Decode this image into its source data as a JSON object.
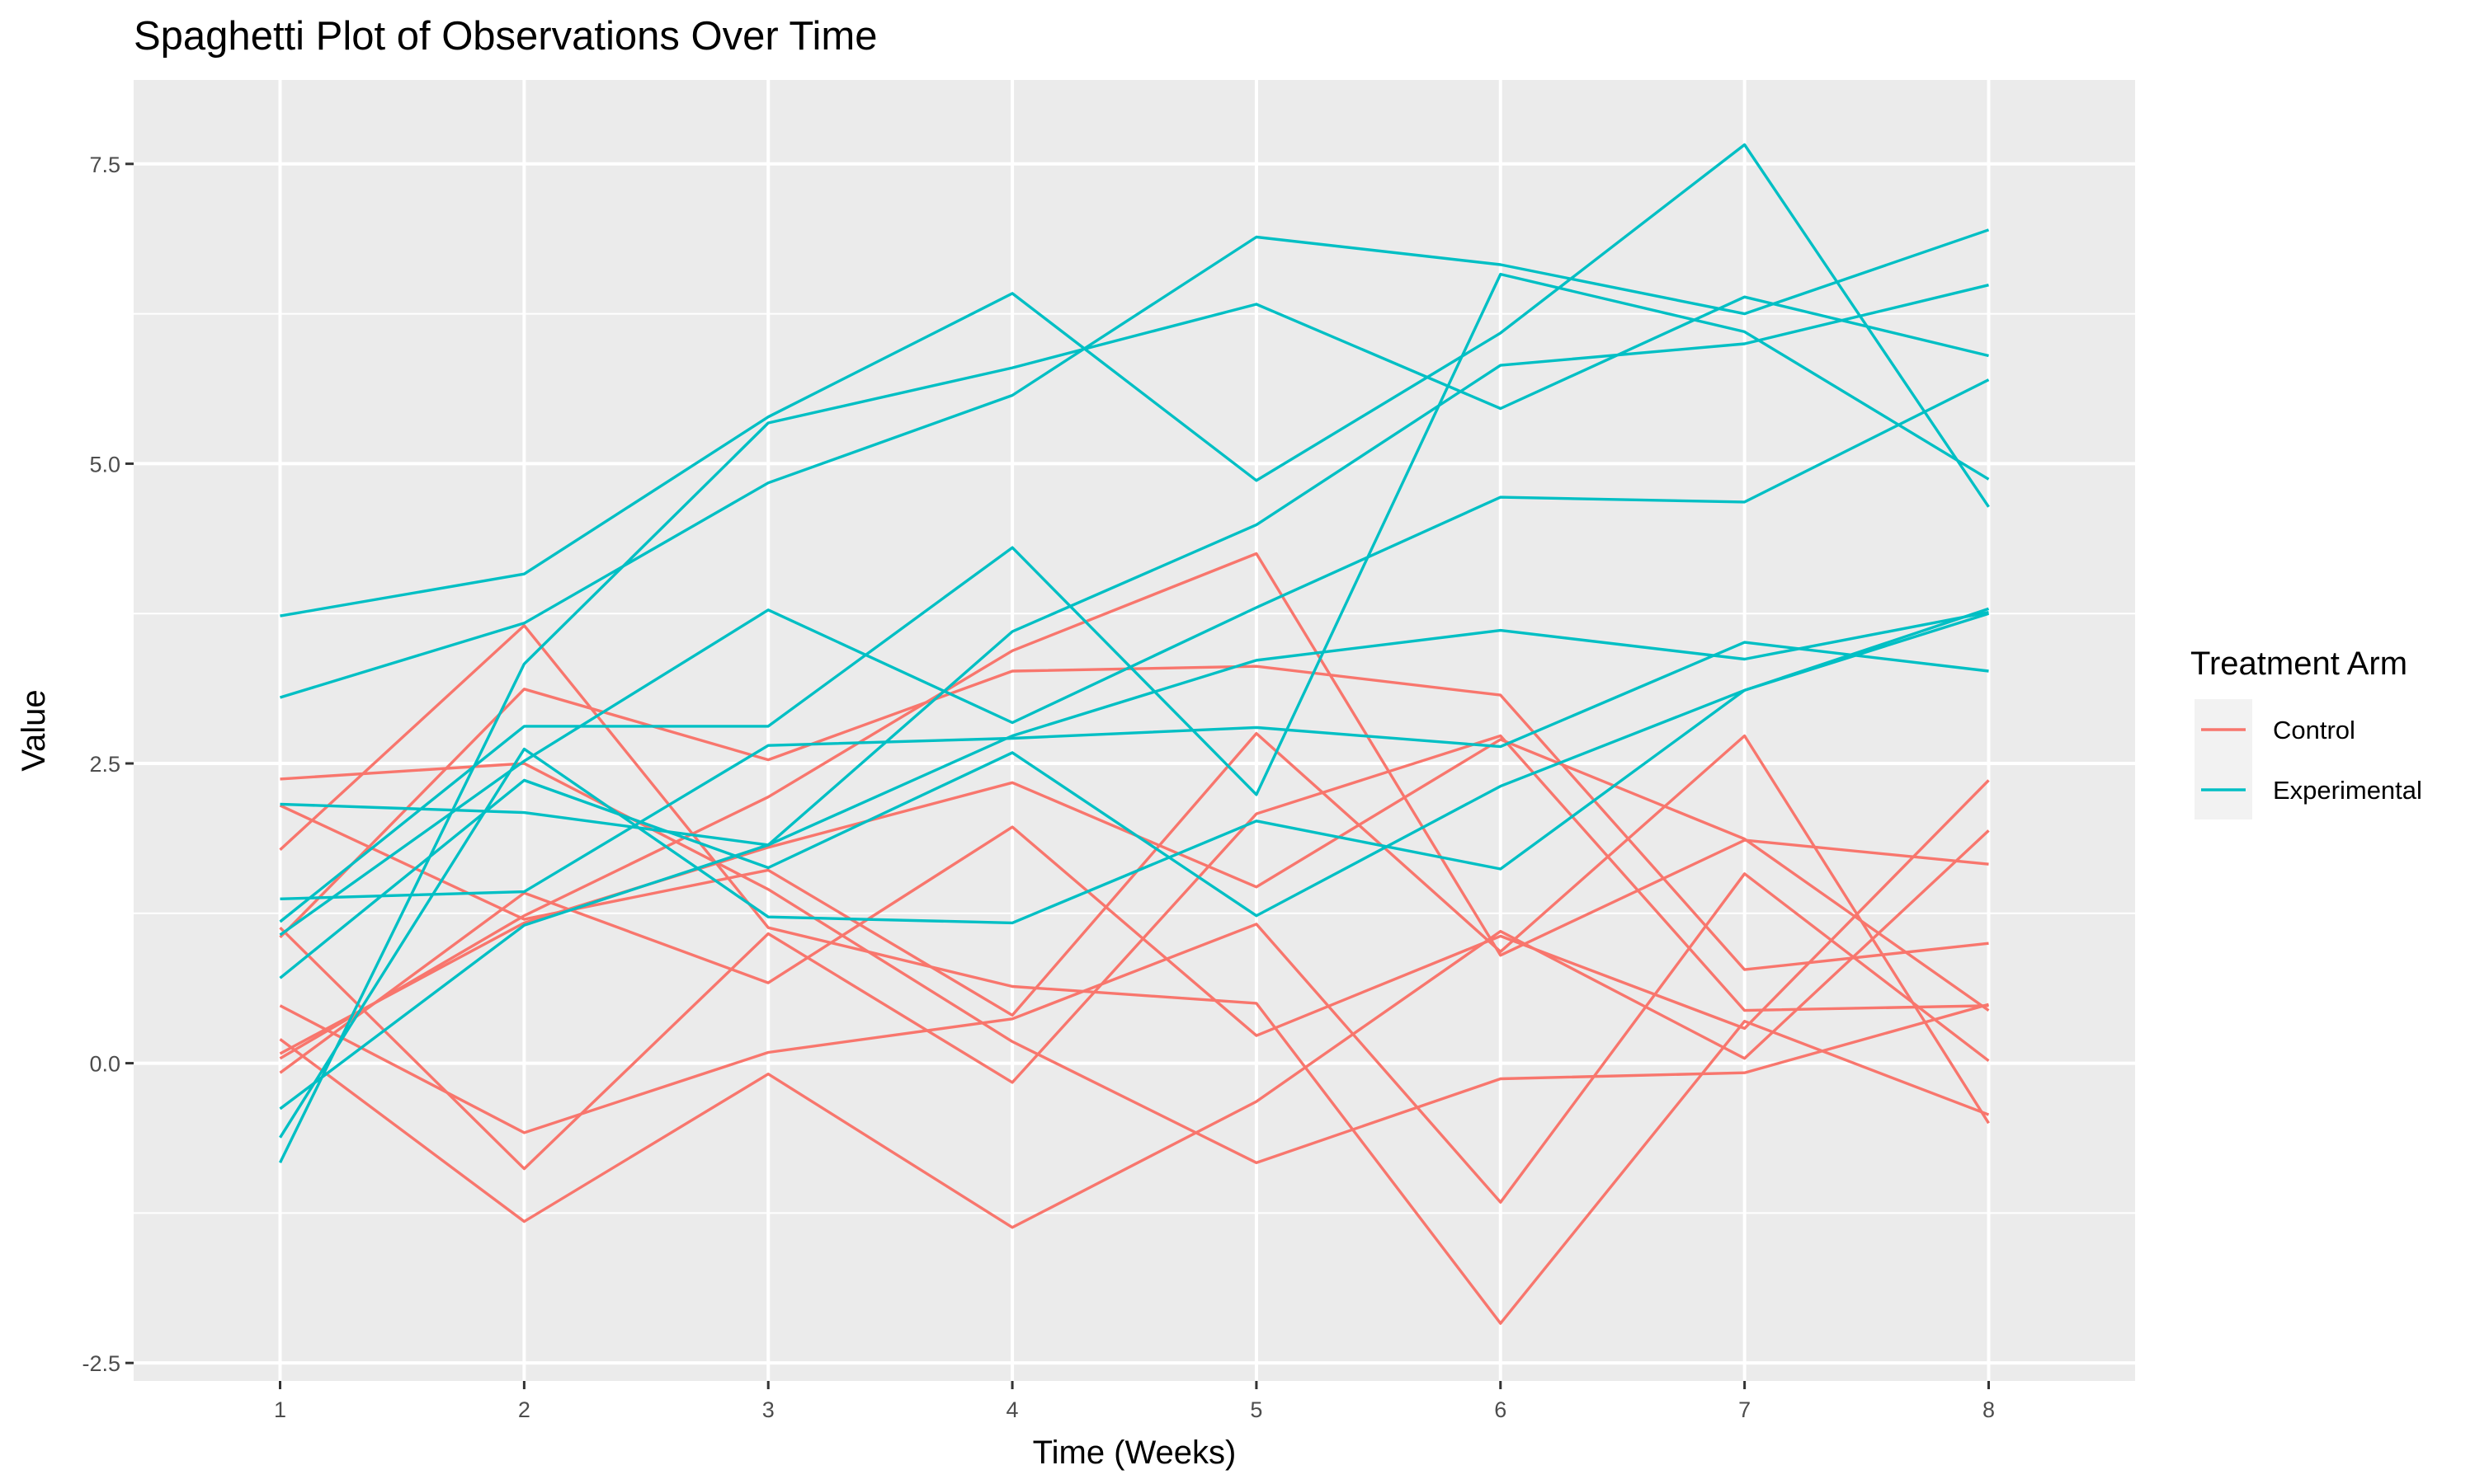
{
  "chart_data": {
    "type": "line",
    "title": "Spaghetti Plot of Observations Over Time",
    "xlabel": "Time (Weeks)",
    "ylabel": "Value",
    "xlim": [
      0.4,
      8.6
    ],
    "ylim": [
      -2.65,
      8.2
    ],
    "x_ticks": [
      1,
      2,
      3,
      4,
      5,
      6,
      7,
      8
    ],
    "x_tick_labels": [
      "1",
      "2",
      "3",
      "4",
      "5",
      "6",
      "7",
      "8"
    ],
    "y_ticks": [
      -2.5,
      0,
      2.5,
      5,
      7.5
    ],
    "y_tick_labels": [
      "-2.5",
      "0.0",
      "2.5",
      "5.0",
      "7.5"
    ],
    "grid": true,
    "legend": {
      "title": "Treatment Arm",
      "position": "right",
      "entries": [
        {
          "label": "Control",
          "color": "#F8766D"
        },
        {
          "label": "Experimental",
          "color": "#00BFC4"
        }
      ]
    },
    "x": [
      1,
      2,
      3,
      4,
      5,
      6,
      7,
      8
    ],
    "series": [
      {
        "group": "Control",
        "values": [
          0.2,
          -1.32,
          -0.09,
          -1.37,
          -0.32,
          1.1,
          0.04,
          1.94
        ]
      },
      {
        "group": "Control",
        "values": [
          1.13,
          -0.88,
          1.08,
          -0.16,
          2.08,
          2.73,
          0.44,
          0.48
        ]
      },
      {
        "group": "Control",
        "values": [
          0.48,
          -0.58,
          0.09,
          0.37,
          1.16,
          -1.16,
          1.58,
          0.02
        ]
      },
      {
        "group": "Control",
        "values": [
          2.37,
          2.5,
          1.45,
          0.18,
          -0.83,
          -0.13,
          -0.08,
          0.49
        ]
      },
      {
        "group": "Control",
        "values": [
          1.78,
          3.65,
          1.13,
          0.64,
          0.5,
          -2.17,
          0.35,
          -0.43
        ]
      },
      {
        "group": "Control",
        "values": [
          2.15,
          1.2,
          1.61,
          0.4,
          2.75,
          0.93,
          2.73,
          -0.5
        ]
      },
      {
        "group": "Control",
        "values": [
          0.04,
          1.23,
          2.22,
          3.44,
          4.25,
          0.9,
          1.86,
          1.66
        ]
      },
      {
        "group": "Control",
        "values": [
          -0.08,
          1.42,
          0.67,
          1.97,
          0.23,
          1.06,
          0.29,
          2.36
        ]
      },
      {
        "group": "Control",
        "values": [
          1.05,
          3.12,
          2.53,
          3.27,
          3.31,
          3.07,
          0.78,
          1.0
        ]
      },
      {
        "group": "Control",
        "values": [
          0.08,
          1.17,
          1.8,
          2.34,
          1.47,
          2.7,
          1.87,
          0.44
        ]
      },
      {
        "group": "Experimental",
        "values": [
          3.73,
          4.08,
          5.39,
          6.42,
          4.86,
          6.09,
          7.66,
          4.64
        ]
      },
      {
        "group": "Experimental",
        "values": [
          3.05,
          3.67,
          4.84,
          5.57,
          6.89,
          6.66,
          6.25,
          6.95
        ]
      },
      {
        "group": "Experimental",
        "values": [
          2.16,
          2.09,
          1.82,
          2.73,
          3.36,
          3.61,
          3.37,
          3.76
        ]
      },
      {
        "group": "Experimental",
        "values": [
          1.18,
          2.81,
          2.81,
          4.3,
          2.24,
          6.58,
          6.1,
          4.87
        ]
      },
      {
        "group": "Experimental",
        "values": [
          1.37,
          1.43,
          2.65,
          2.71,
          2.8,
          2.64,
          3.51,
          3.27
        ]
      },
      {
        "group": "Experimental",
        "values": [
          -0.62,
          2.62,
          1.22,
          1.17,
          2.02,
          1.62,
          3.11,
          3.79
        ]
      },
      {
        "group": "Experimental",
        "values": [
          0.71,
          2.36,
          1.63,
          2.59,
          1.23,
          2.31,
          3.11,
          3.75
        ]
      },
      {
        "group": "Experimental",
        "values": [
          -0.83,
          3.33,
          5.34,
          5.8,
          6.33,
          5.46,
          6.39,
          5.9
        ]
      },
      {
        "group": "Experimental",
        "values": [
          1.07,
          2.52,
          3.78,
          2.84,
          3.8,
          4.72,
          4.68,
          5.7
        ]
      },
      {
        "group": "Experimental",
        "values": [
          -0.38,
          1.15,
          1.82,
          3.6,
          4.49,
          5.82,
          6.0,
          6.49
        ]
      }
    ]
  }
}
